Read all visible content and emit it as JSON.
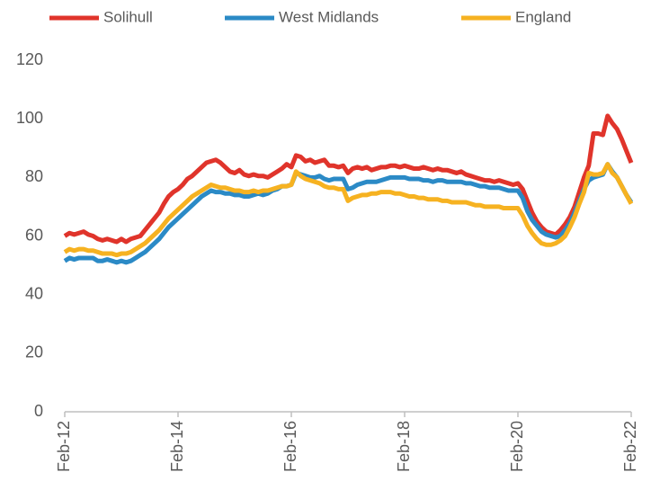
{
  "chart_data": {
    "type": "line",
    "categories": [
      "Feb-12",
      null,
      null,
      null,
      null,
      null,
      null,
      null,
      null,
      null,
      null,
      null,
      null,
      null,
      null,
      null,
      null,
      null,
      null,
      null,
      null,
      null,
      null,
      null,
      "Feb-14",
      null,
      null,
      null,
      null,
      null,
      null,
      null,
      null,
      null,
      null,
      null,
      null,
      null,
      null,
      null,
      null,
      null,
      null,
      null,
      null,
      null,
      null,
      null,
      "Feb-16",
      null,
      null,
      null,
      null,
      null,
      null,
      null,
      null,
      null,
      null,
      null,
      null,
      null,
      null,
      null,
      null,
      null,
      null,
      null,
      null,
      null,
      null,
      null,
      "Feb-18",
      null,
      null,
      null,
      null,
      null,
      null,
      null,
      null,
      null,
      null,
      null,
      null,
      null,
      null,
      null,
      null,
      null,
      null,
      null,
      null,
      null,
      null,
      null,
      "Feb-20",
      null,
      null,
      null,
      null,
      null,
      null,
      null,
      null,
      null,
      null,
      null,
      null,
      null,
      null,
      null,
      null,
      null,
      null,
      null,
      null,
      null,
      null,
      null,
      "Feb-22"
    ],
    "series": [
      {
        "name": "Solihull",
        "color": "#e0342b",
        "values": [
          60,
          61,
          60.5,
          61,
          61.5,
          60.5,
          60,
          59,
          58.5,
          59,
          58.5,
          58,
          59,
          58,
          59,
          59.5,
          60,
          62,
          64,
          66,
          68,
          71,
          73.5,
          75,
          76,
          77.5,
          79.5,
          80.5,
          82,
          83.5,
          85,
          85.5,
          86,
          85,
          83.5,
          82,
          81.5,
          82.5,
          81,
          80.5,
          81,
          80.5,
          80.5,
          80,
          81,
          82,
          83,
          84.5,
          83.5,
          87.5,
          87,
          85.5,
          86,
          85,
          85.5,
          86,
          84,
          84,
          83.5,
          84,
          81.5,
          83,
          83.5,
          83,
          83.5,
          82.5,
          83,
          83.5,
          83.5,
          84,
          84,
          83.5,
          84,
          83.5,
          83,
          83,
          83.5,
          83,
          82.5,
          83,
          82.5,
          82.5,
          82,
          81.5,
          82,
          81,
          80.5,
          80,
          79.5,
          79,
          79,
          78.5,
          79,
          78.5,
          78,
          77.5,
          78,
          76,
          72,
          68,
          65,
          63,
          61.5,
          61,
          60.5,
          62,
          64,
          66.5,
          70,
          75,
          80,
          84,
          95,
          95,
          94.5,
          101,
          98.5,
          96.5,
          93,
          89,
          85
        ]
      },
      {
        "name": "West Midlands",
        "color": "#2b8ac6",
        "values": [
          51.5,
          52.5,
          52,
          52.5,
          52.5,
          52.5,
          52.5,
          51.5,
          51.5,
          52,
          51.5,
          51,
          51.5,
          51,
          51.5,
          52.5,
          53.5,
          54.5,
          56,
          57.5,
          59,
          61,
          63,
          64.5,
          66,
          67.5,
          69,
          70.5,
          72,
          73.5,
          74.5,
          75.5,
          75,
          75,
          74.5,
          74.5,
          74,
          74,
          73.5,
          73.5,
          74,
          74.5,
          74,
          74.5,
          75.5,
          76,
          77,
          77,
          77.5,
          81.5,
          81,
          80.5,
          80,
          80,
          80.5,
          79.5,
          79,
          79.5,
          79.5,
          79.5,
          76,
          76.5,
          77.5,
          78,
          78.5,
          78.5,
          78.5,
          79,
          79.5,
          80,
          80,
          80,
          80,
          79.5,
          79.5,
          79.5,
          79,
          79,
          78.5,
          79,
          79,
          78.5,
          78.5,
          78.5,
          78.5,
          78,
          78,
          77.5,
          77,
          77,
          76.5,
          76.5,
          76.5,
          76,
          75.5,
          75.5,
          75.5,
          73,
          68.5,
          65.5,
          63.5,
          61.5,
          60.5,
          60,
          59.5,
          60,
          62,
          64.5,
          68,
          72,
          76,
          79,
          80,
          80.5,
          81,
          84.5,
          82,
          80,
          77,
          74,
          71.5
        ]
      },
      {
        "name": "England",
        "color": "#f6b221",
        "values": [
          54.5,
          55.5,
          55,
          55.5,
          55.5,
          55,
          55,
          54.5,
          54,
          54,
          54,
          53.5,
          54,
          54,
          54.5,
          55.5,
          56.5,
          57.5,
          59,
          60.5,
          62,
          64,
          66,
          67.5,
          69,
          70.5,
          72,
          73.5,
          74.5,
          75.5,
          76.5,
          77.5,
          77,
          76.5,
          76.5,
          76,
          75.5,
          75.5,
          75,
          75,
          75.5,
          75,
          75.5,
          75.5,
          76,
          76.5,
          77,
          77,
          77.5,
          82,
          80.5,
          79.5,
          79,
          78.5,
          78,
          77,
          76.5,
          76.5,
          76,
          76,
          72,
          73,
          73.5,
          74,
          74,
          74.5,
          74.5,
          75,
          75,
          75,
          74.5,
          74.5,
          74,
          73.5,
          73.5,
          73,
          73,
          72.5,
          72.5,
          72.5,
          72,
          72,
          71.5,
          71.5,
          71.5,
          71.5,
          71,
          70.5,
          70.5,
          70,
          70,
          70,
          70,
          69.5,
          69.5,
          69.5,
          69.5,
          67,
          63.5,
          61,
          59,
          57.5,
          57,
          57,
          57.5,
          58.5,
          60,
          63,
          66.5,
          71,
          75,
          81.5,
          81,
          81,
          81.5,
          84.5,
          81.5,
          80,
          77,
          74,
          71
        ]
      }
    ],
    "ylim": [
      0,
      120
    ],
    "yticks": [
      0,
      20,
      40,
      60,
      80,
      100,
      120
    ],
    "grid": false,
    "legend": "top"
  }
}
